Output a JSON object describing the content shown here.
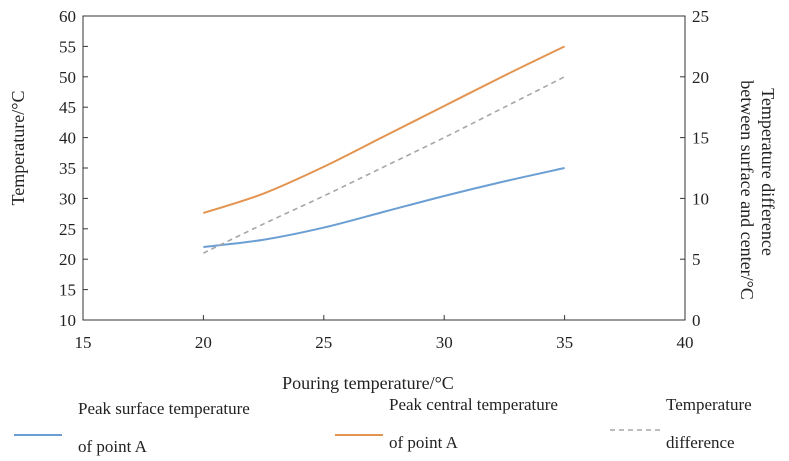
{
  "chart_data": {
    "type": "line",
    "xlabel": "Pouring temperature/°C",
    "ylabel_left": "Temperature/°C",
    "ylabel_right": [
      "Temperature difference",
      "between surface and center/°C"
    ],
    "xlim": [
      15,
      40
    ],
    "ylim_left": [
      10,
      60
    ],
    "ylim_right": [
      0,
      25
    ],
    "x_ticks": [
      "15",
      "20",
      "25",
      "30",
      "35",
      "40"
    ],
    "y_left_ticks": [
      "10",
      "15",
      "20",
      "25",
      "30",
      "35",
      "40",
      "45",
      "50",
      "55",
      "60"
    ],
    "y_right_ticks": [
      "0",
      "5",
      "10",
      "15",
      "20",
      "25"
    ],
    "grid": false,
    "legend_position": "bottom",
    "series": [
      {
        "name": [
          "Peak surface temperature",
          "of point A"
        ],
        "axis": "left",
        "color": "#6b9fd4",
        "style": "solid",
        "x": [
          20,
          22.5,
          25,
          27.5,
          30,
          32.5,
          35
        ],
        "values": [
          22.0,
          23.2,
          25.2,
          27.8,
          30.4,
          32.8,
          35.0
        ]
      },
      {
        "name": [
          "Peak central temperature",
          "of point A"
        ],
        "axis": "left",
        "color": "#e39450",
        "style": "solid",
        "x": [
          20,
          22.5,
          25,
          27.5,
          30,
          32.5,
          35
        ],
        "values": [
          27.6,
          30.8,
          35.2,
          40.2,
          45.2,
          50.2,
          55.0
        ]
      },
      {
        "name": [
          "Temperature",
          "difference"
        ],
        "axis": "right",
        "color": "#a6a6a6",
        "style": "dashed",
        "x": [
          20,
          22.5,
          25,
          27.5,
          30,
          32.5,
          35
        ],
        "values": [
          5.5,
          7.9,
          10.2,
          12.6,
          15.0,
          17.5,
          20.0
        ]
      }
    ]
  }
}
